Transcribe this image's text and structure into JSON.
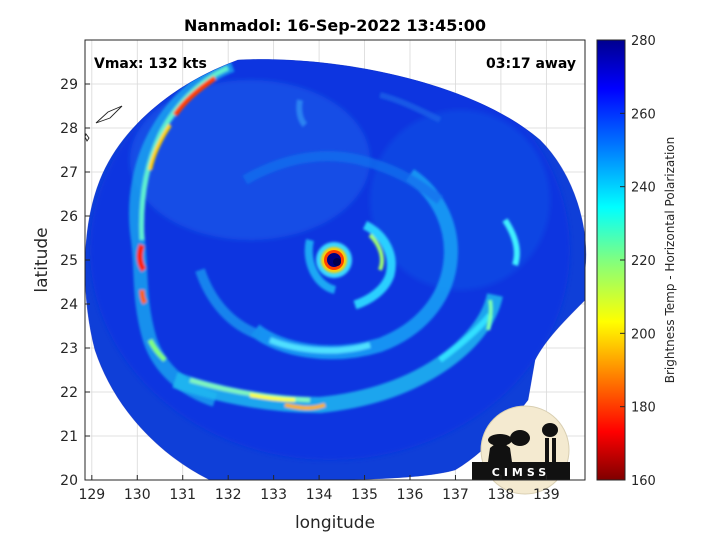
{
  "chart_data": {
    "type": "heatmap",
    "title": "Nanmadol: 16-Sep-2022 13:45:00",
    "xlabel": "longitude",
    "ylabel": "latitude",
    "xlim": [
      128.85,
      139.85
    ],
    "ylim": [
      20,
      30
    ],
    "xticks": [
      129,
      130,
      131,
      132,
      133,
      134,
      135,
      136,
      137,
      138,
      139
    ],
    "yticks": [
      20,
      21,
      22,
      23,
      24,
      25,
      26,
      27,
      28,
      29
    ],
    "grid": true,
    "annotations": {
      "vmax": "Vmax: 132 kts",
      "time_away": "03:17 away"
    },
    "colorbar": {
      "label": "Brightness Temp - Horizontal Polarization",
      "range": [
        160,
        280
      ],
      "ticks": [
        160,
        180,
        200,
        220,
        240,
        260,
        280
      ],
      "colormap": [
        "#7f0000",
        "#ff0000",
        "#ff8000",
        "#ffff00",
        "#80ff80",
        "#00ffff",
        "#0080ff",
        "#0000ff",
        "#00008f"
      ]
    },
    "storm_center": {
      "lon": 134.5,
      "lat": 25.0
    },
    "logo": "CIMSS"
  }
}
